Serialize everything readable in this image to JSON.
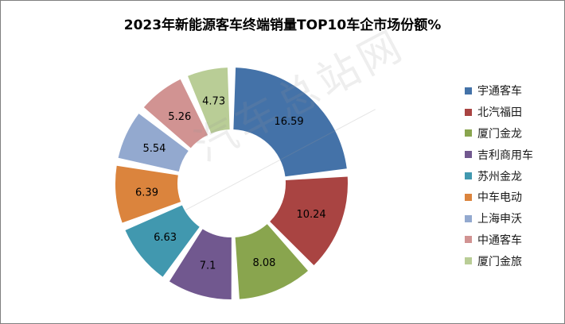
{
  "chart_data": {
    "type": "donut",
    "title": "2023年新能源客车终端销量TOP10车企市场份额%",
    "categories": [
      "宇通客车",
      "北汽福田",
      "厦门金龙",
      "吉利商用车",
      "苏州金龙",
      "中车电动",
      "上海申沃",
      "中通客车",
      "厦门金旅"
    ],
    "values": [
      16.59,
      10.24,
      8.08,
      7.1,
      6.63,
      6.39,
      5.54,
      5.26,
      4.73
    ],
    "labels": [
      "16.59",
      "10.24",
      "8.08",
      "7.1",
      "6.63",
      "6.39",
      "5.54",
      "5.26",
      "4.73"
    ],
    "colors": [
      "#4472A8",
      "#A94442",
      "#89A54E",
      "#71588F",
      "#4198AF",
      "#DB843D",
      "#93A9CF",
      "#D19392",
      "#B9CD96"
    ],
    "legend_position": "right"
  },
  "watermark": "汽车总站网"
}
